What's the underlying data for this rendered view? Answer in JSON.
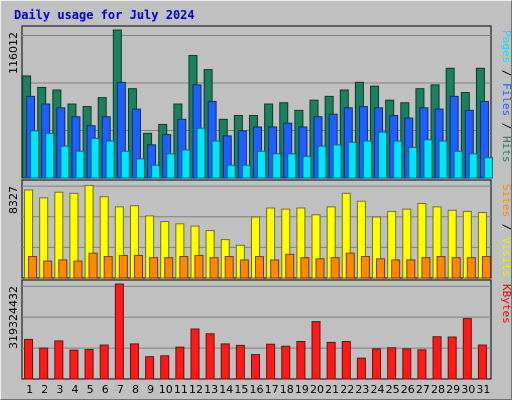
{
  "title": "Daily usage for July 2024",
  "chart_data": [
    {
      "type": "bar",
      "panel": "top",
      "y_tick_label": "116012",
      "side_labels": [
        {
          "text": "Pages",
          "color": "#00e5ff"
        },
        {
          "text": "Files",
          "color": "#1e60ff"
        },
        {
          "text": "Hits",
          "color": "#1a8060"
        }
      ],
      "side_separator": " / ",
      "categories": [
        "1",
        "2",
        "3",
        "4",
        "5",
        "6",
        "7",
        "8",
        "9",
        "10",
        "11",
        "12",
        "13",
        "14",
        "15",
        "16",
        "17",
        "18",
        "19",
        "20",
        "21",
        "22",
        "23",
        "24",
        "25",
        "26",
        "27",
        "28",
        "29",
        "30",
        "31"
      ],
      "ylim": [
        0,
        116012
      ],
      "series": [
        {
          "name": "Hits",
          "color": "#1a8060",
          "values": [
            80000,
            71000,
            69000,
            58000,
            56000,
            63000,
            116000,
            70000,
            35000,
            42000,
            58000,
            96000,
            85000,
            46000,
            49000,
            49000,
            58000,
            59000,
            53000,
            61000,
            64000,
            69000,
            75000,
            72000,
            61000,
            59000,
            70000,
            73000,
            86000,
            67000,
            86000
          ]
        },
        {
          "name": "Files",
          "color": "#1e60ff",
          "values": [
            64000,
            58000,
            55000,
            48000,
            41000,
            48000,
            75000,
            54000,
            26000,
            34000,
            46000,
            73000,
            60000,
            33000,
            37000,
            40000,
            40000,
            43000,
            40000,
            48000,
            50000,
            55000,
            56000,
            55000,
            49000,
            47000,
            55000,
            54000,
            64000,
            53000,
            60000
          ]
        },
        {
          "name": "Pages",
          "color": "#00e5ff",
          "values": [
            37000,
            35000,
            25000,
            21000,
            31000,
            29000,
            21000,
            15000,
            10000,
            19000,
            22000,
            39000,
            29000,
            10000,
            10000,
            21000,
            19000,
            19000,
            17000,
            25000,
            26000,
            28000,
            29000,
            36000,
            29000,
            24000,
            30000,
            29000,
            21000,
            19000,
            16000
          ]
        }
      ]
    },
    {
      "type": "bar",
      "panel": "middle",
      "y_tick_label": "8327",
      "side_labels": [
        {
          "text": "Sites",
          "color": "#ff8800"
        },
        {
          "text": "Visits",
          "color": "#eeee00"
        }
      ],
      "side_separator": " / ",
      "categories": [
        "1",
        "2",
        "3",
        "4",
        "5",
        "6",
        "7",
        "8",
        "9",
        "10",
        "11",
        "12",
        "13",
        "14",
        "15",
        "16",
        "17",
        "18",
        "19",
        "20",
        "21",
        "22",
        "23",
        "24",
        "25",
        "26",
        "27",
        "28",
        "29",
        "30",
        "31"
      ],
      "ylim": [
        0,
        8327
      ],
      "series": [
        {
          "name": "Visits",
          "color": "#ffff00",
          "values": [
            7800,
            7100,
            7600,
            7500,
            8200,
            7200,
            6300,
            6400,
            5500,
            5000,
            4800,
            4600,
            4200,
            3400,
            2900,
            5400,
            6200,
            6100,
            6200,
            5600,
            6300,
            7500,
            6800,
            5400,
            5900,
            6100,
            6600,
            6300,
            6000,
            5900,
            5800
          ]
        },
        {
          "name": "Sites",
          "color": "#ff8800",
          "values": [
            1900,
            1500,
            1600,
            1500,
            2200,
            1900,
            2000,
            2000,
            1800,
            1800,
            1900,
            2000,
            1800,
            1900,
            1600,
            1900,
            1600,
            2100,
            1800,
            1700,
            1800,
            2200,
            1900,
            1700,
            1600,
            1600,
            1800,
            1900,
            1800,
            1800,
            1900
          ]
        }
      ]
    },
    {
      "type": "bar",
      "panel": "bottom",
      "y_tick_label": "319324432",
      "side_labels": [
        {
          "text": "KBytes",
          "color": "#ff0000"
        }
      ],
      "categories": [
        "1",
        "2",
        "3",
        "4",
        "5",
        "6",
        "7",
        "8",
        "9",
        "10",
        "11",
        "12",
        "13",
        "14",
        "15",
        "16",
        "17",
        "18",
        "19",
        "20",
        "21",
        "22",
        "23",
        "24",
        "25",
        "26",
        "27",
        "28",
        "29",
        "30",
        "31"
      ],
      "ylim": [
        0,
        319324432
      ],
      "series": [
        {
          "name": "KBytes",
          "color": "#ff1a1a",
          "values": [
            133000000,
            104000000,
            128000000,
            97000000,
            99000000,
            114000000,
            319324432,
            118000000,
            75000000,
            78000000,
            107000000,
            168000000,
            152000000,
            118000000,
            113000000,
            82000000,
            117000000,
            110000000,
            126000000,
            193000000,
            123000000,
            126000000,
            70000000,
            101000000,
            105000000,
            101000000,
            98000000,
            142000000,
            141000000,
            203000000,
            114000000
          ]
        }
      ]
    }
  ],
  "x_axis": {
    "labels": [
      "1",
      "2",
      "3",
      "4",
      "5",
      "6",
      "7",
      "8",
      "9",
      "10",
      "11",
      "12",
      "13",
      "14",
      "15",
      "16",
      "17",
      "18",
      "19",
      "20",
      "21",
      "22",
      "23",
      "24",
      "25",
      "26",
      "27",
      "28",
      "29",
      "30",
      "31"
    ],
    "weekend_days": [
      "6",
      "7",
      "13",
      "14",
      "20",
      "21",
      "27",
      "28"
    ],
    "weekday_color": "#000000",
    "weekend_color": "#00805a"
  }
}
